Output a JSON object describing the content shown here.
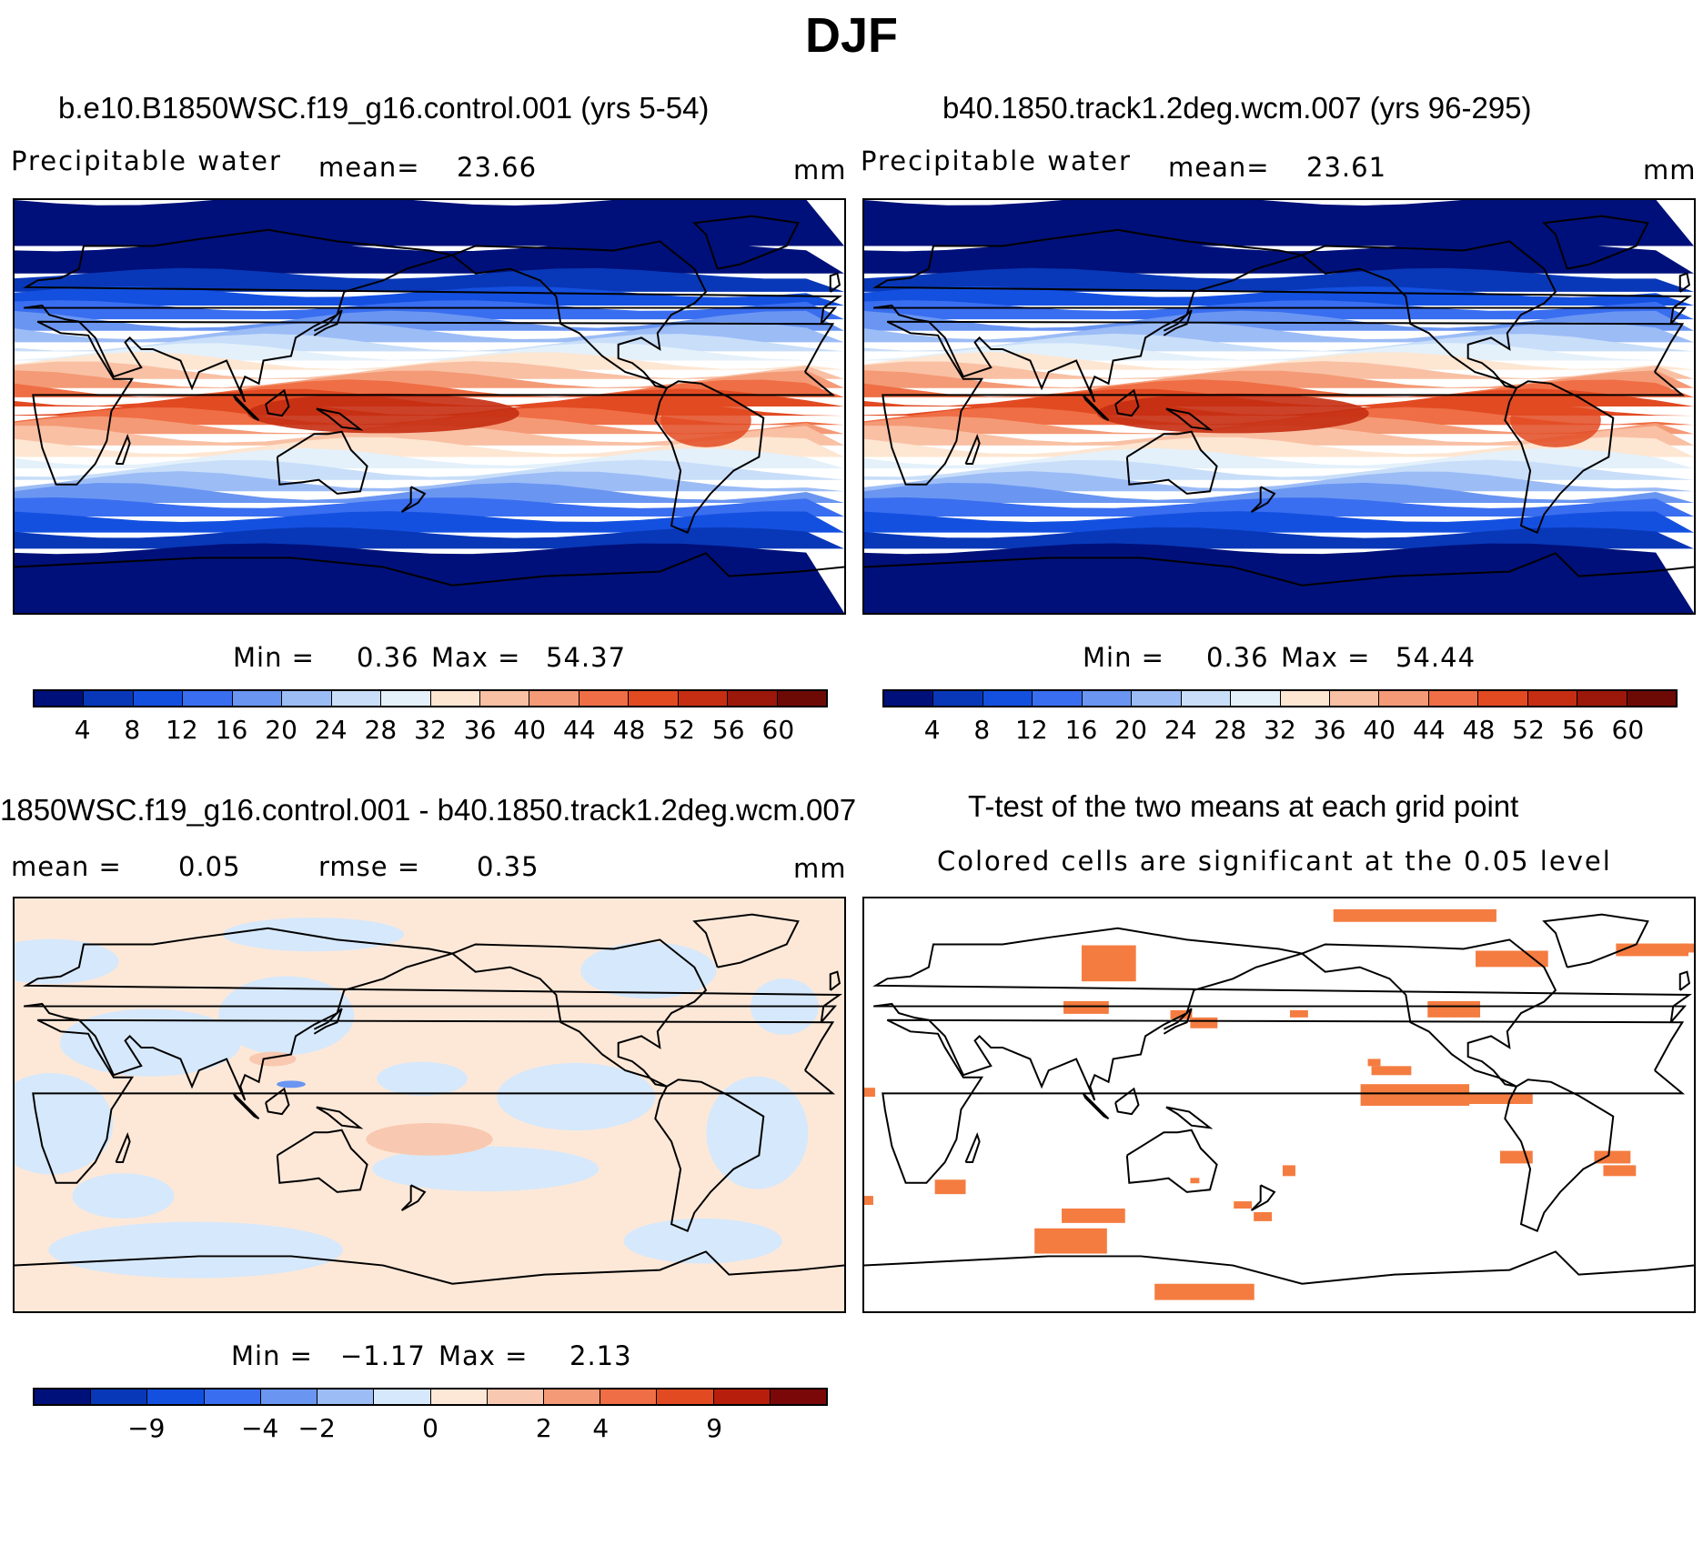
{
  "figure": {
    "title": "DJF"
  },
  "colors": {
    "scale": [
      "#00107a",
      "#0838b8",
      "#1450e0",
      "#3a6ef0",
      "#6a96f2",
      "#9cbcf6",
      "#c8def9",
      "#e4f1fb",
      "#fde6d2",
      "#f9c0a4",
      "#f49a76",
      "#ef6e45",
      "#e24a22",
      "#c52e12",
      "#9c180a",
      "#6e0a06"
    ],
    "diff_scale": [
      "#00107a",
      "#0838b8",
      "#1450e0",
      "#3a6ef0",
      "#6a96f2",
      "#9cbcf6",
      "#d6e8fb",
      "#fde8d8",
      "#f9c8b0",
      "#f49a76",
      "#ef6e45",
      "#e24a22",
      "#b81e0c",
      "#7a0808"
    ],
    "land_outline": "#000000",
    "signif": "#f47c40"
  },
  "panels": {
    "top_left": {
      "title": "b.e10.B1850WSC.f19_g16.control.001 (yrs 5-54)",
      "variable": "Precipitable water",
      "mean_label": "mean=",
      "mean_value": "23.66",
      "units": "mm",
      "min_label": "Min =",
      "min_value": "0.36",
      "max_label": "Max =",
      "max_value": "54.37",
      "colorbar_labels": [
        "4",
        "8",
        "12",
        "16",
        "20",
        "24",
        "28",
        "32",
        "36",
        "40",
        "44",
        "48",
        "52",
        "56",
        "60"
      ]
    },
    "top_right": {
      "title": "b40.1850.track1.2deg.wcm.007 (yrs 96-295)",
      "variable": "Precipitable water",
      "mean_label": "mean=",
      "mean_value": "23.61",
      "units": "mm",
      "min_label": "Min =",
      "min_value": "0.36",
      "max_label": "Max =",
      "max_value": "54.44",
      "colorbar_labels": [
        "4",
        "8",
        "12",
        "16",
        "20",
        "24",
        "28",
        "32",
        "36",
        "40",
        "44",
        "48",
        "52",
        "56",
        "60"
      ]
    },
    "bottom_left": {
      "title": "1850WSC.f19_g16.control.001 - b40.1850.track1.2deg.wcm.007",
      "mean_label": "mean =",
      "mean_value": "0.05",
      "rmse_label": "rmse =",
      "rmse_value": "0.35",
      "units": "mm",
      "min_label": "Min =",
      "min_value": "−1.17",
      "max_label": "Max =",
      "max_value": "2.13",
      "colorbar_labels": [
        "−9",
        "−4",
        "−2",
        "0",
        "2",
        "4",
        "9"
      ]
    },
    "bottom_right": {
      "title": "T-test of the two means at each grid point",
      "subtitle": "Colored cells are significant at the 0.05 level"
    }
  }
}
